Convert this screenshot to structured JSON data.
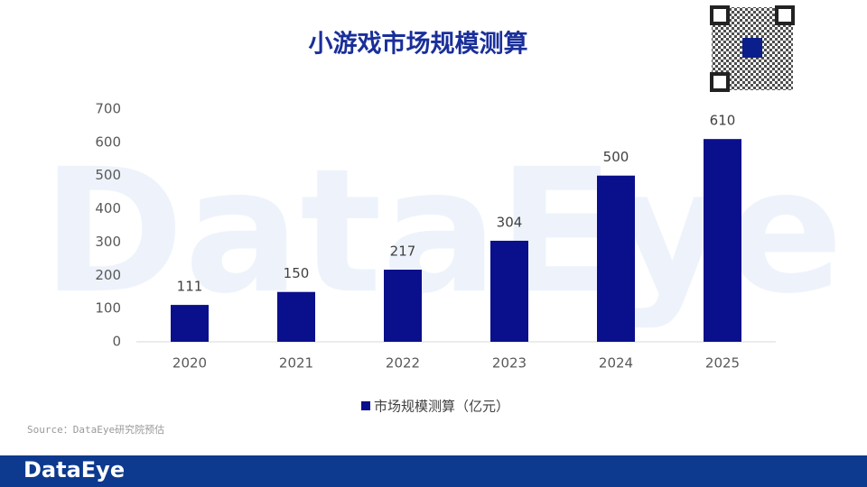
{
  "chart_data": {
    "type": "bar",
    "title": "小游戏市场规模测算",
    "categories": [
      "2020",
      "2021",
      "2022",
      "2023",
      "2024",
      "2025"
    ],
    "series": [
      {
        "name": "市场规模测算（亿元）",
        "color": "#0a0f8c",
        "values": [
          111,
          150,
          217,
          304,
          500,
          610
        ]
      }
    ],
    "ylim": [
      0,
      700
    ],
    "yticks": [
      0,
      100,
      200,
      300,
      400,
      500,
      600,
      700
    ],
    "grid": false,
    "legend": "bottom",
    "source": "Source：DataEye研究院预估",
    "watermark": "DataEye",
    "logo": "DataEye"
  }
}
